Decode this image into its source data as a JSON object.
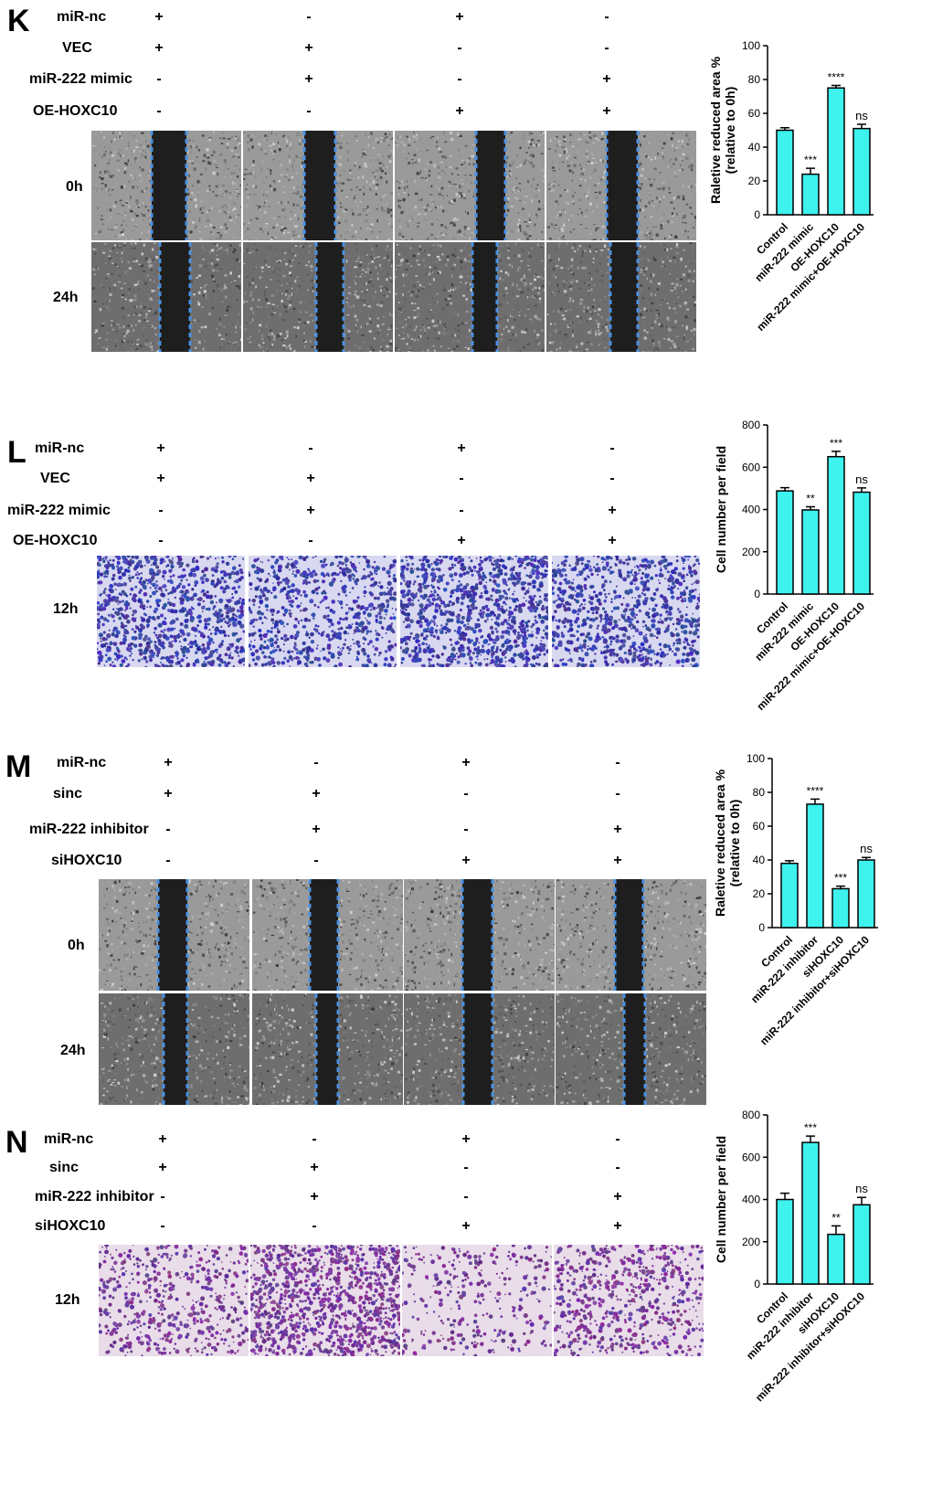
{
  "panels": [
    {
      "letter": "K",
      "conditions": [
        {
          "label": "miR-nc",
          "signs": [
            "+",
            "-",
            "+",
            "-"
          ]
        },
        {
          "label": "VEC",
          "signs": [
            "+",
            "+",
            "-",
            "-"
          ]
        },
        {
          "label": "miR-222 mimic",
          "signs": [
            "-",
            "+",
            "-",
            "+"
          ]
        },
        {
          "label": "OE-HOXC10",
          "signs": [
            "-",
            "-",
            "+",
            "+"
          ]
        }
      ],
      "time_labels": [
        "0h",
        "24h"
      ],
      "image_type": "wound"
    },
    {
      "letter": "L",
      "conditions": [
        {
          "label": "miR-nc",
          "signs": [
            "+",
            "-",
            "+",
            "-"
          ]
        },
        {
          "label": "VEC",
          "signs": [
            "+",
            "+",
            "-",
            "-"
          ]
        },
        {
          "label": "miR-222 mimic",
          "signs": [
            "-",
            "+",
            "-",
            "+"
          ]
        },
        {
          "label": "OE-HOXC10",
          "signs": [
            "-",
            "-",
            "+",
            "+"
          ]
        }
      ],
      "time_labels": [
        "12h"
      ],
      "image_type": "transwell"
    },
    {
      "letter": "M",
      "conditions": [
        {
          "label": "miR-nc",
          "signs": [
            "+",
            "-",
            "+",
            "-"
          ]
        },
        {
          "label": "sinc",
          "signs": [
            "+",
            "+",
            "-",
            "-"
          ]
        },
        {
          "label": "miR-222 inhibitor",
          "signs": [
            "-",
            "+",
            "-",
            "+"
          ]
        },
        {
          "label": "siHOXC10",
          "signs": [
            "-",
            "-",
            "+",
            "+"
          ]
        }
      ],
      "time_labels": [
        "0h",
        "24h"
      ],
      "image_type": "wound"
    },
    {
      "letter": "N",
      "conditions": [
        {
          "label": "miR-nc",
          "signs": [
            "+",
            "-",
            "+",
            "-"
          ]
        },
        {
          "label": "sinc",
          "signs": [
            "+",
            "+",
            "-",
            "-"
          ]
        },
        {
          "label": "miR-222 inhibitor",
          "signs": [
            "-",
            "+",
            "-",
            "+"
          ]
        },
        {
          "label": "siHOXC10",
          "signs": [
            "-",
            "-",
            "+",
            "+"
          ]
        }
      ],
      "time_labels": [
        "12h"
      ],
      "image_type": "transwell"
    }
  ],
  "chart_data": [
    {
      "type": "bar",
      "panel": "K",
      "categories": [
        "Control",
        "miR-222 mimic",
        "OE-HOXC10",
        "miR-222 mimic+OE-HOXC10"
      ],
      "values": [
        50,
        24,
        75,
        51
      ],
      "errors": [
        1.5,
        3.5,
        1.5,
        2.5
      ],
      "significance": [
        "",
        "***",
        "****",
        "ns"
      ],
      "ylabel": "Raletive reduced area %\n(relative to 0h)",
      "ylim": [
        0,
        100
      ],
      "yticks": [
        0,
        20,
        40,
        60,
        80,
        100
      ],
      "bar_color": "#3ef2ee"
    },
    {
      "type": "bar",
      "panel": "L",
      "categories": [
        "Control",
        "miR-222 mimic",
        "OE-HOXC10",
        "miR-222 mimic+OE-HOXC10"
      ],
      "values": [
        488,
        398,
        650,
        482
      ],
      "errors": [
        15,
        15,
        25,
        20
      ],
      "significance": [
        "",
        "**",
        "***",
        "ns"
      ],
      "ylabel": "Cell number per field",
      "ylim": [
        0,
        800
      ],
      "yticks": [
        0,
        200,
        400,
        600,
        800
      ],
      "bar_color": "#3ef2ee"
    },
    {
      "type": "bar",
      "panel": "M",
      "categories": [
        "Control",
        "miR-222 inhibitor",
        "siHOXC10",
        "miR-222 inhibitor+siHOXC10"
      ],
      "values": [
        38,
        73,
        23,
        40
      ],
      "errors": [
        1.5,
        3,
        1.5,
        1.5
      ],
      "significance": [
        "",
        "****",
        "***",
        "ns"
      ],
      "ylabel": "Raletive reduced area %\n(relative to 0h)",
      "ylim": [
        0,
        100
      ],
      "yticks": [
        0,
        20,
        40,
        60,
        80,
        100
      ],
      "bar_color": "#3ef2ee"
    },
    {
      "type": "bar",
      "panel": "N",
      "categories": [
        "Control",
        "miR-222 inhibitor",
        "siHOXC10",
        "miR-222 inhibitor+siHOXC10"
      ],
      "values": [
        400,
        670,
        235,
        375
      ],
      "errors": [
        30,
        30,
        40,
        35
      ],
      "significance": [
        "",
        "***",
        "**",
        "ns"
      ],
      "ylabel": "Cell number per field",
      "ylim": [
        0,
        800
      ],
      "yticks": [
        0,
        200,
        400,
        600,
        800
      ],
      "bar_color": "#3ef2ee"
    }
  ]
}
